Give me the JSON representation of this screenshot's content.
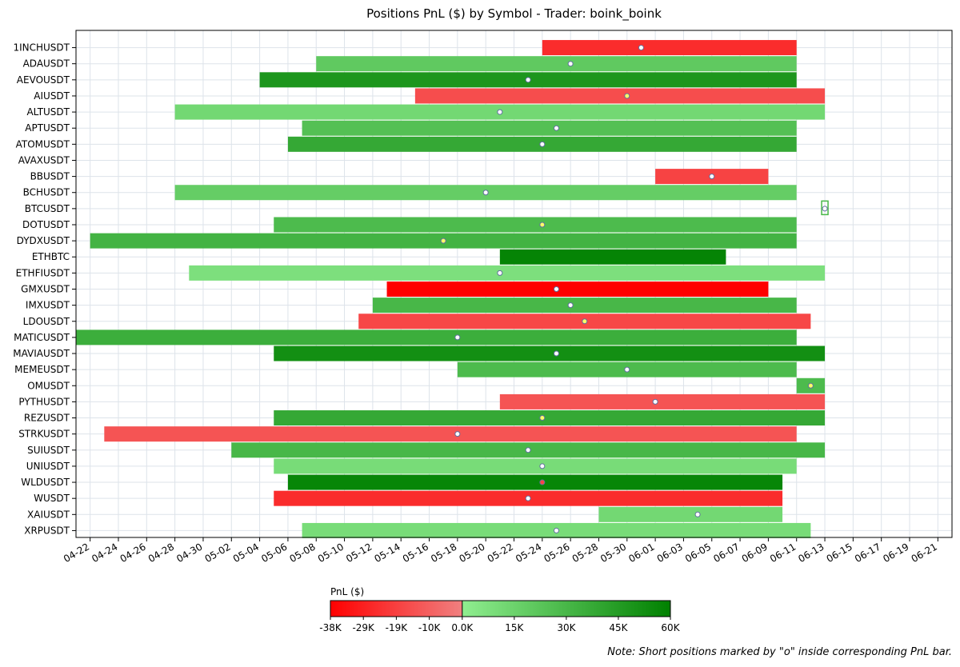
{
  "chart_data": {
    "type": "gantt",
    "title": "Positions PnL ($) by Symbol - Trader: boink_boink",
    "x_ticks": [
      "04-22",
      "04-24",
      "04-26",
      "04-28",
      "04-30",
      "05-02",
      "05-04",
      "05-06",
      "05-08",
      "05-10",
      "05-12",
      "05-14",
      "05-16",
      "05-18",
      "05-20",
      "05-22",
      "05-24",
      "05-26",
      "05-28",
      "05-30",
      "06-01",
      "06-03",
      "06-05",
      "06-07",
      "06-09",
      "06-11",
      "06-13",
      "06-15",
      "06-17",
      "06-19",
      "06-21"
    ],
    "x_range": [
      "04-21",
      "06-22"
    ],
    "grid": true,
    "bars": [
      {
        "symbol": "1INCHUSDT",
        "start": "05-24",
        "end": "06-11",
        "pnl": -25000,
        "short_marker": "05-31",
        "marker_color": "#ffffff"
      },
      {
        "symbol": "ADAUSDT",
        "start": "05-08",
        "end": "06-11",
        "pnl": 20000,
        "short_marker": "05-26",
        "marker_color": "#ffffff"
      },
      {
        "symbol": "AEVOUSDT",
        "start": "05-04",
        "end": "06-11",
        "pnl": 48000,
        "short_marker": "05-23",
        "marker_color": "#ffffff"
      },
      {
        "symbol": "AIUSDT",
        "start": "05-15",
        "end": "06-13",
        "pnl": -15000,
        "short_marker": "05-30",
        "marker_color": "#ffff66"
      },
      {
        "symbol": "ALTUSDT",
        "start": "04-28",
        "end": "06-13",
        "pnl": 12000,
        "short_marker": "05-21",
        "marker_color": "#ffffff"
      },
      {
        "symbol": "APTUSDT",
        "start": "05-07",
        "end": "06-11",
        "pnl": 25000,
        "short_marker": "05-25",
        "marker_color": "#ffffff"
      },
      {
        "symbol": "ATOMUSDT",
        "start": "05-06",
        "end": "06-11",
        "pnl": 38000,
        "short_marker": "05-24",
        "marker_color": "#ffffff"
      },
      {
        "symbol": "AVAXUSDT",
        "start": null,
        "end": null,
        "pnl": null,
        "short_marker": null,
        "marker_color": null
      },
      {
        "symbol": "BBUSDT",
        "start": "06-01",
        "end": "06-09",
        "pnl": -18000,
        "short_marker": "06-05",
        "marker_color": "#ffffff"
      },
      {
        "symbol": "BCHUSDT",
        "start": "04-28",
        "end": "06-11",
        "pnl": 18000,
        "short_marker": "05-20",
        "marker_color": "#ffffff"
      },
      {
        "symbol": "BTCUSDT",
        "start": "06-13",
        "end": "06-13",
        "pnl": 30000,
        "short_marker": "06-13",
        "marker_color": "#ffffff"
      },
      {
        "symbol": "DOTUSDT",
        "start": "05-05",
        "end": "06-11",
        "pnl": 28000,
        "short_marker": "05-24",
        "marker_color": "#ffff66"
      },
      {
        "symbol": "DYDXUSDT",
        "start": "04-22",
        "end": "06-11",
        "pnl": 32000,
        "short_marker": "05-17",
        "marker_color": "#ffff66"
      },
      {
        "symbol": "ETHBTC",
        "start": "05-21",
        "end": "06-06",
        "pnl": 58000,
        "short_marker": null,
        "marker_color": null
      },
      {
        "symbol": "ETHFIUSDT",
        "start": "04-29",
        "end": "06-13",
        "pnl": 8000,
        "short_marker": "05-21",
        "marker_color": "#ffffff"
      },
      {
        "symbol": "GMXUSDT",
        "start": "05-13",
        "end": "06-09",
        "pnl": -38000,
        "short_marker": "05-25",
        "marker_color": "#ffffff"
      },
      {
        "symbol": "IMXUSDT",
        "start": "05-12",
        "end": "06-11",
        "pnl": 30000,
        "short_marker": "05-26",
        "marker_color": "#ffffff"
      },
      {
        "symbol": "LDOUSDT",
        "start": "05-11",
        "end": "06-12",
        "pnl": -17000,
        "short_marker": "05-27",
        "marker_color": "#ffff66"
      },
      {
        "symbol": "MATICUSDT",
        "start": "04-21",
        "end": "06-11",
        "pnl": 35000,
        "short_marker": "05-18",
        "marker_color": "#ffffff"
      },
      {
        "symbol": "MAVIAUSDT",
        "start": "05-05",
        "end": "06-13",
        "pnl": 52000,
        "short_marker": "05-25",
        "marker_color": "#ffffff"
      },
      {
        "symbol": "MEMEUSDT",
        "start": "05-18",
        "end": "06-11",
        "pnl": 28000,
        "short_marker": "05-30",
        "marker_color": "#ffffff"
      },
      {
        "symbol": "OMUSDT",
        "start": "06-11",
        "end": "06-13",
        "pnl": 28000,
        "short_marker": "06-12",
        "marker_color": "#ffff66"
      },
      {
        "symbol": "PYTHUSDT",
        "start": "05-21",
        "end": "06-13",
        "pnl": -13000,
        "short_marker": "06-01",
        "marker_color": "#ffffff"
      },
      {
        "symbol": "REZUSDT",
        "start": "05-05",
        "end": "06-13",
        "pnl": 38000,
        "short_marker": "05-24",
        "marker_color": "#ffff66"
      },
      {
        "symbol": "STRKUSDT",
        "start": "04-23",
        "end": "06-11",
        "pnl": -13000,
        "short_marker": "05-18",
        "marker_color": "#ffffff"
      },
      {
        "symbol": "SUIUSDT",
        "start": "05-02",
        "end": "06-13",
        "pnl": 30000,
        "short_marker": "05-23",
        "marker_color": "#ffffff"
      },
      {
        "symbol": "UNIUSDT",
        "start": "05-05",
        "end": "06-11",
        "pnl": 10000,
        "short_marker": "05-24",
        "marker_color": "#ffffff"
      },
      {
        "symbol": "WLDUSDT",
        "start": "05-06",
        "end": "06-10",
        "pnl": 57000,
        "short_marker": "05-24",
        "marker_color": "#ff4444"
      },
      {
        "symbol": "WUSDT",
        "start": "05-05",
        "end": "06-10",
        "pnl": -25000,
        "short_marker": "05-23",
        "marker_color": "#ffffff"
      },
      {
        "symbol": "XAIUSDT",
        "start": "05-28",
        "end": "06-10",
        "pnl": 12000,
        "short_marker": "06-04",
        "marker_color": "#ffffff"
      },
      {
        "symbol": "XRPUSDT",
        "start": "05-07",
        "end": "06-12",
        "pnl": 10000,
        "short_marker": "05-25",
        "marker_color": "#ffffff"
      }
    ],
    "colorbar": {
      "label": "PnL ($)",
      "min": -38000,
      "max": 60000,
      "ticks": [
        "-38K",
        "-29K",
        "-19K",
        "-10K",
        "0.0K",
        "15K",
        "30K",
        "45K",
        "60K"
      ],
      "negative_colors": [
        "#ff0000",
        "#f08080"
      ],
      "positive_colors": [
        "#90ee90",
        "#008000"
      ]
    },
    "note": "Note: Short positions marked by \"o\" inside corresponding PnL bar."
  }
}
